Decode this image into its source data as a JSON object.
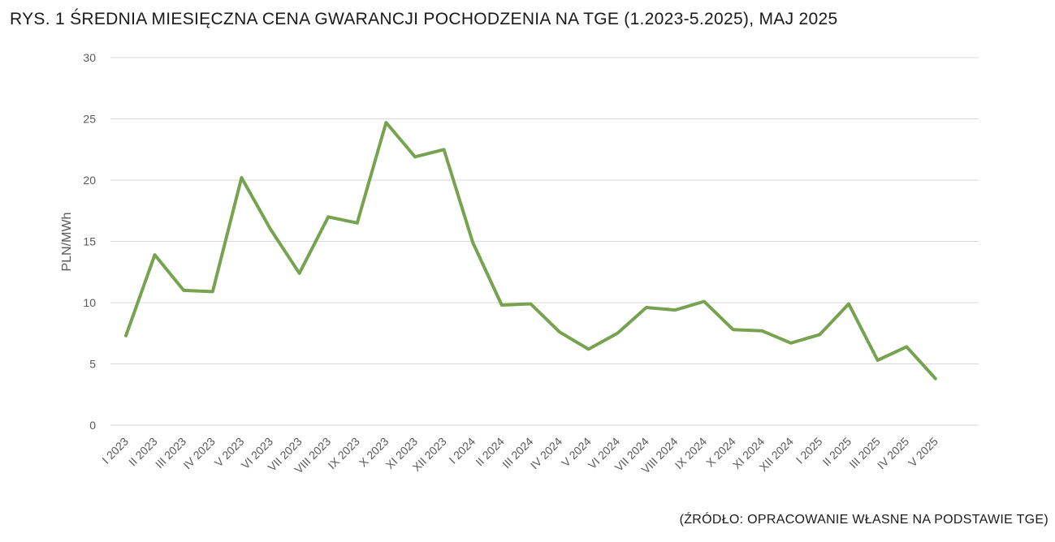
{
  "chart_data": {
    "type": "line",
    "title": "RYS. 1 ŚREDNIA MIESIĘCZNA CENA GWARANCJI POCHODZENIA NA TGE (1.2023-5.2025), MAJ 2025",
    "source": "(ŹRÓDŁO: OPRACOWANIE WŁASNE NA PODSTAWIE TGE)",
    "xlabel": "",
    "ylabel": "PLN/MWh",
    "ylim": [
      0,
      30
    ],
    "yticks": [
      0,
      5,
      10,
      15,
      20,
      25,
      30
    ],
    "grid": true,
    "legend": "none",
    "line_color": "#77a351",
    "gridline_color": "#d9d9d9",
    "categories": [
      "I 2023",
      "II 2023",
      "III 2023",
      "IV 2023",
      "V 2023",
      "VI 2023",
      "VII 2023",
      "VIII 2023",
      "IX 2023",
      "X 2023",
      "XI 2023",
      "XII 2023",
      "I 2024",
      "II 2024",
      "III 2024",
      "IV 2024",
      "V 2024",
      "VI 2024",
      "VII 2024",
      "VIII 2024",
      "IX 2024",
      "X 2024",
      "XI 2024",
      "XII 2024",
      "I 2025",
      "II 2025",
      "III 2025",
      "IV 2025",
      "V 2025"
    ],
    "values": [
      7.3,
      13.9,
      11.0,
      10.9,
      20.2,
      16.0,
      12.4,
      17.0,
      16.5,
      24.7,
      21.9,
      22.5,
      14.9,
      9.8,
      9.9,
      7.6,
      6.2,
      7.5,
      9.6,
      9.4,
      10.1,
      7.8,
      7.7,
      6.7,
      7.4,
      9.9,
      5.3,
      6.4,
      3.8
    ]
  }
}
